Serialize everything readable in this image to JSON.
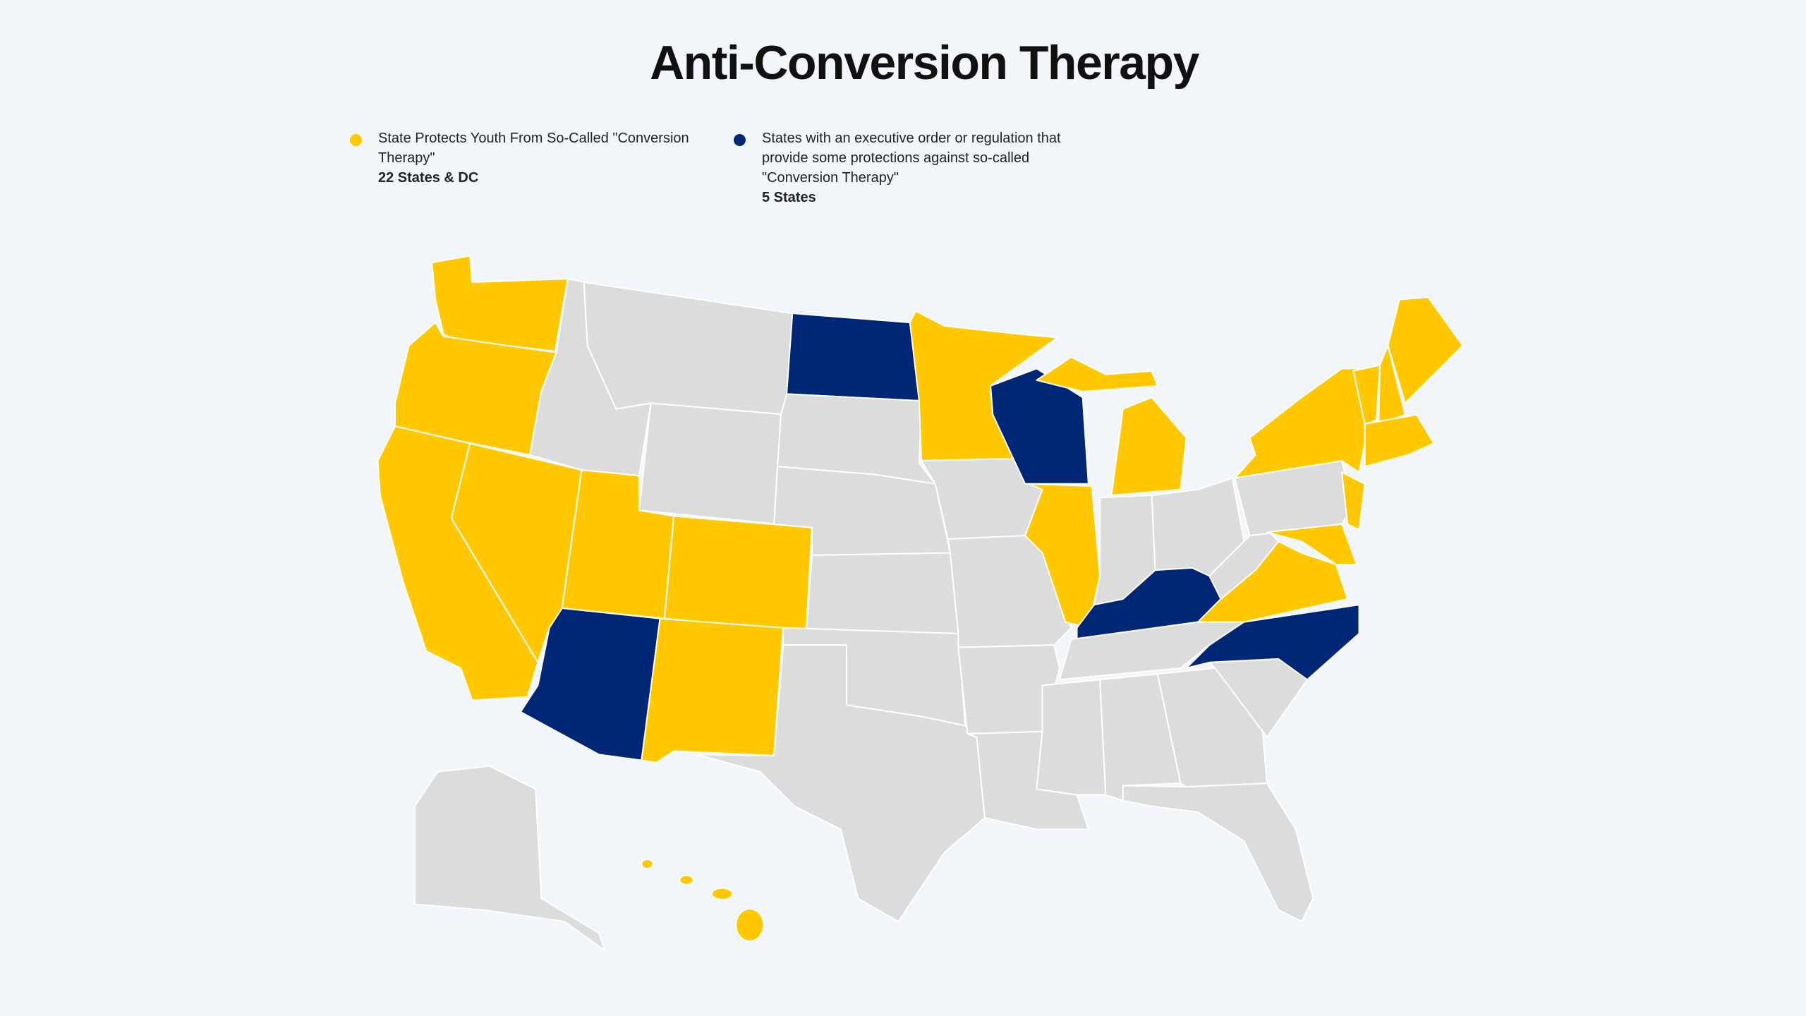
{
  "title": "Anti-Conversion Therapy",
  "legend": [
    {
      "label": "State Protects Youth From So-Called \"Conversion Therapy\"",
      "count": "22 States & DC",
      "color": "#ffc800"
    },
    {
      "label": "States with an executive order or regulation that provide some protections against so-called \"Conversion Therapy\"",
      "count": "5 States",
      "color": "#002776"
    }
  ]
}
